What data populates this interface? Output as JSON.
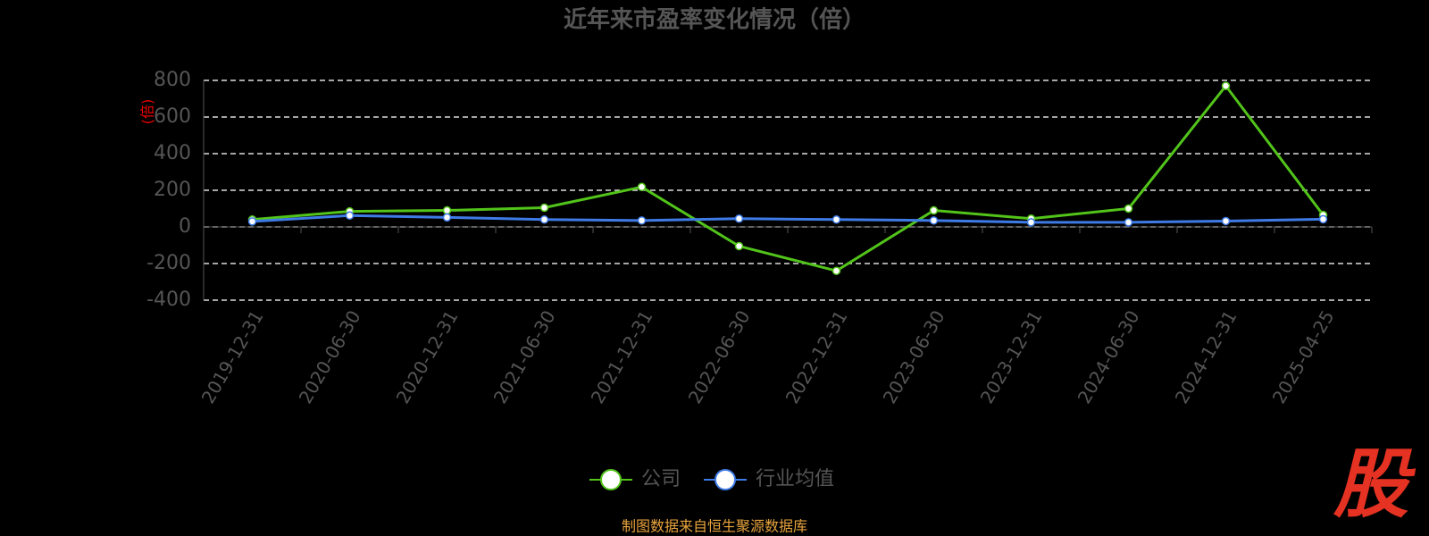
{
  "chart_data": {
    "type": "line",
    "title": "近年来市盈率变化情况（倍）",
    "y_label": "(倍)",
    "categories": [
      "2019-12-31",
      "2020-06-30",
      "2020-12-31",
      "2021-06-30",
      "2021-12-31",
      "2022-06-30",
      "2022-12-31",
      "2023-06-30",
      "2023-12-31",
      "2024-06-30",
      "2024-12-31",
      "2025-04-25"
    ],
    "series": [
      {
        "name": "公司",
        "color": "#52c41a",
        "values": [
          40,
          85,
          90,
          105,
          218,
          -105,
          -240,
          90,
          45,
          100,
          770,
          65
        ]
      },
      {
        "name": "行业均值",
        "color": "#3e7be6",
        "values": [
          30,
          62,
          52,
          40,
          35,
          45,
          40,
          35,
          25,
          25,
          32,
          42
        ]
      }
    ],
    "ylim": [
      -400,
      800
    ],
    "yticks": [
      -400,
      -200,
      0,
      200,
      400,
      600,
      800
    ],
    "grid": true,
    "source": "制图数据来自恒生聚源数据库",
    "logo": "股"
  }
}
